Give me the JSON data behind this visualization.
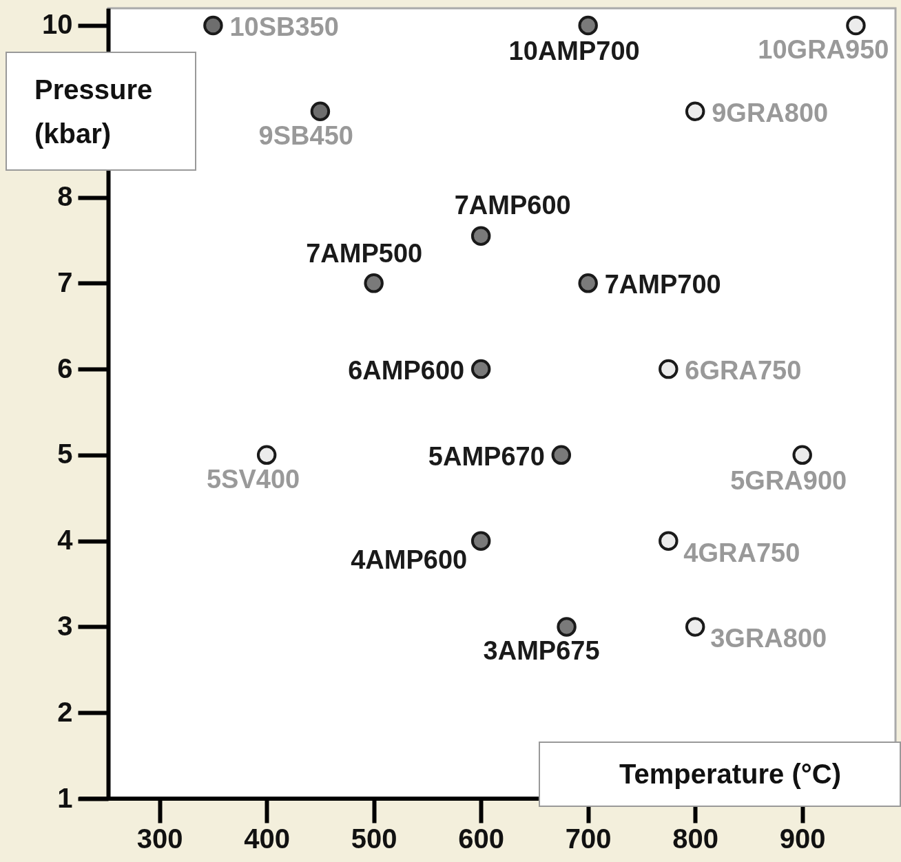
{
  "chart_data": {
    "type": "scatter",
    "xlabel": "Temperature (°C)",
    "ylabel": "Pressure (kbar)",
    "xlim": [
      252,
      987
    ],
    "ylim": [
      1,
      10.2
    ],
    "xticks": [
      300,
      400,
      500,
      600,
      700,
      800,
      900
    ],
    "yticks": [
      1,
      2,
      3,
      4,
      5,
      6,
      7,
      8,
      10
    ],
    "marker": "circle",
    "series": [
      {
        "color": "#7a7a7a",
        "x": [
          700,
          600,
          500,
          700,
          600,
          675,
          600,
          680
        ],
        "values": [
          10,
          7.55,
          7,
          7,
          6,
          5,
          4,
          3
        ],
        "value_labels": [
          "10AMP700",
          "7AMP600",
          "7AMP500",
          "7AMP700",
          "6AMP600",
          "5AMP670",
          "4AMP600",
          "3AMP675"
        ]
      },
      {
        "color": "#6e6e6e",
        "x": [
          350,
          450
        ],
        "values": [
          10,
          9
        ],
        "value_labels": [
          "10SB350",
          "9SB450"
        ]
      },
      {
        "color": "#ececec",
        "x": [
          950,
          800,
          775,
          400,
          900,
          775,
          800
        ],
        "values": [
          10,
          9,
          6,
          5,
          5,
          4,
          3
        ],
        "value_labels": [
          "10GRA950",
          "9GRA800",
          "6GRA750",
          "5SV400",
          "5GRA900",
          "4GRA750",
          "3GRA800"
        ]
      }
    ]
  }
}
